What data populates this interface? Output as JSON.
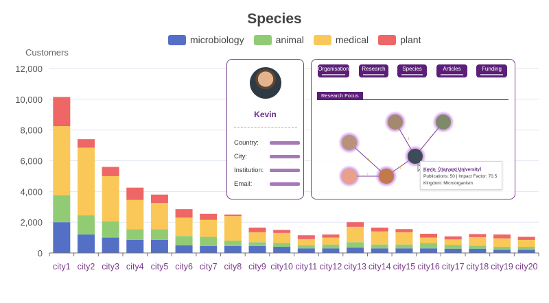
{
  "chart_data": {
    "type": "bar",
    "stacked": true,
    "title": "Species",
    "ylabel": "Customers",
    "xlabel": "",
    "ylim": [
      0,
      12000
    ],
    "yticks": [
      0,
      2000,
      4000,
      6000,
      8000,
      10000,
      12000
    ],
    "ytick_labels": [
      "0",
      "2,000",
      "4,000",
      "6,000",
      "8,000",
      "10,000",
      "12,000"
    ],
    "grid": true,
    "legend_position": "top-center",
    "categories": [
      "city1",
      "city2",
      "city3",
      "city4",
      "city5",
      "city6",
      "city7",
      "city8",
      "city9",
      "city10",
      "city11",
      "city12",
      "city13",
      "city14",
      "city15",
      "city16",
      "city17",
      "city18",
      "city19",
      "city20"
    ],
    "series": [
      {
        "name": "microbiology",
        "color": "#5470c6",
        "values": [
          2000,
          1200,
          1000,
          850,
          850,
          500,
          450,
          450,
          450,
          400,
          300,
          300,
          350,
          300,
          300,
          300,
          280,
          280,
          200,
          200
        ]
      },
      {
        "name": "animal",
        "color": "#91cc75",
        "values": [
          1750,
          1250,
          1050,
          700,
          700,
          600,
          600,
          350,
          250,
          250,
          200,
          250,
          350,
          250,
          250,
          350,
          250,
          200,
          200,
          200
        ]
      },
      {
        "name": "medical",
        "color": "#fac858",
        "values": [
          4500,
          4400,
          2950,
          1900,
          1700,
          1200,
          1100,
          1600,
          650,
          650,
          400,
          450,
          1000,
          850,
          800,
          350,
          350,
          550,
          550,
          450
        ]
      },
      {
        "name": "plant",
        "color": "#ee6666",
        "values": [
          1900,
          550,
          600,
          800,
          550,
          550,
          400,
          100,
          300,
          200,
          250,
          200,
          300,
          250,
          200,
          250,
          200,
          200,
          250,
          200
        ]
      }
    ]
  },
  "card": {
    "name": "Kevin",
    "rows": [
      "Country:",
      "City:",
      "Institution:",
      "Email:"
    ]
  },
  "panel": {
    "tabs": [
      "Organisation",
      "Research",
      "Species",
      "Articles",
      "Funding"
    ],
    "section": "Research Focus",
    "tooltip": {
      "name": "Kevin（Harvard University）",
      "publications": "Publications: 50  |  Impact Factor: 70.5",
      "kingdom": "Kingdom: Microorganism"
    }
  },
  "colors": {
    "accent_purple": "#5b1f78",
    "category_label": "#7a3e8c",
    "node_glow": "#b45bd6",
    "edge": "#7a3e8c"
  }
}
